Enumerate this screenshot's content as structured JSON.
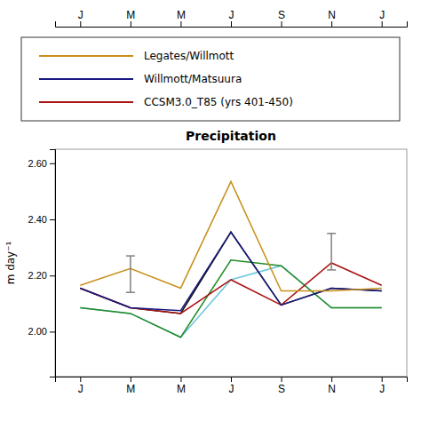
{
  "chart_data": {
    "type": "line",
    "title": "Precipitation",
    "ylabel": "m day⁻¹",
    "categories": [
      "J",
      "M",
      "M",
      "J",
      "S",
      "N",
      "J"
    ],
    "series": [
      {
        "name": "Legates/Willmott",
        "color": "#C8901A",
        "values": [
          2.165,
          2.225,
          2.155,
          2.535,
          2.145,
          2.145,
          2.155
        ]
      },
      {
        "name": "Willmott/Matsuura",
        "color": "#191980",
        "values": [
          2.155,
          2.085,
          2.075,
          2.355,
          2.095,
          2.155,
          2.145
        ]
      },
      {
        "name": "CCSM3.0_T85 (yrs 401-450)",
        "color": "#aa1111",
        "values": [
          2.155,
          2.085,
          2.065,
          2.185,
          2.095,
          2.245,
          2.165
        ]
      },
      {
        "color": "#111111",
        "values": [
          2.155,
          2.085,
          2.065,
          2.355,
          2.095,
          2.155,
          2.145
        ]
      },
      {
        "color": "#228B22",
        "values": [
          2.085,
          2.065,
          1.98,
          2.255,
          2.235,
          2.085,
          2.085
        ]
      },
      {
        "color": "#6CC5E0",
        "values": [
          2.085,
          2.065,
          1.98,
          2.185,
          2.235,
          2.085,
          2.085
        ]
      }
    ],
    "error_bars": {
      "color": "#808080",
      "values": [
        null,
        2.205,
        null,
        null,
        null,
        2.285,
        null
      ],
      "errors": [
        null,
        0.065,
        null,
        null,
        null,
        0.065,
        null
      ]
    },
    "ylim": [
      1.84,
      2.65
    ],
    "yticks": [
      {
        "value": 2.0,
        "label": "2.00"
      },
      {
        "value": 2.2,
        "label": "2.20"
      },
      {
        "value": 2.4,
        "label": "2.40"
      },
      {
        "value": 2.6,
        "label": "2.60"
      }
    ],
    "grid": false
  }
}
